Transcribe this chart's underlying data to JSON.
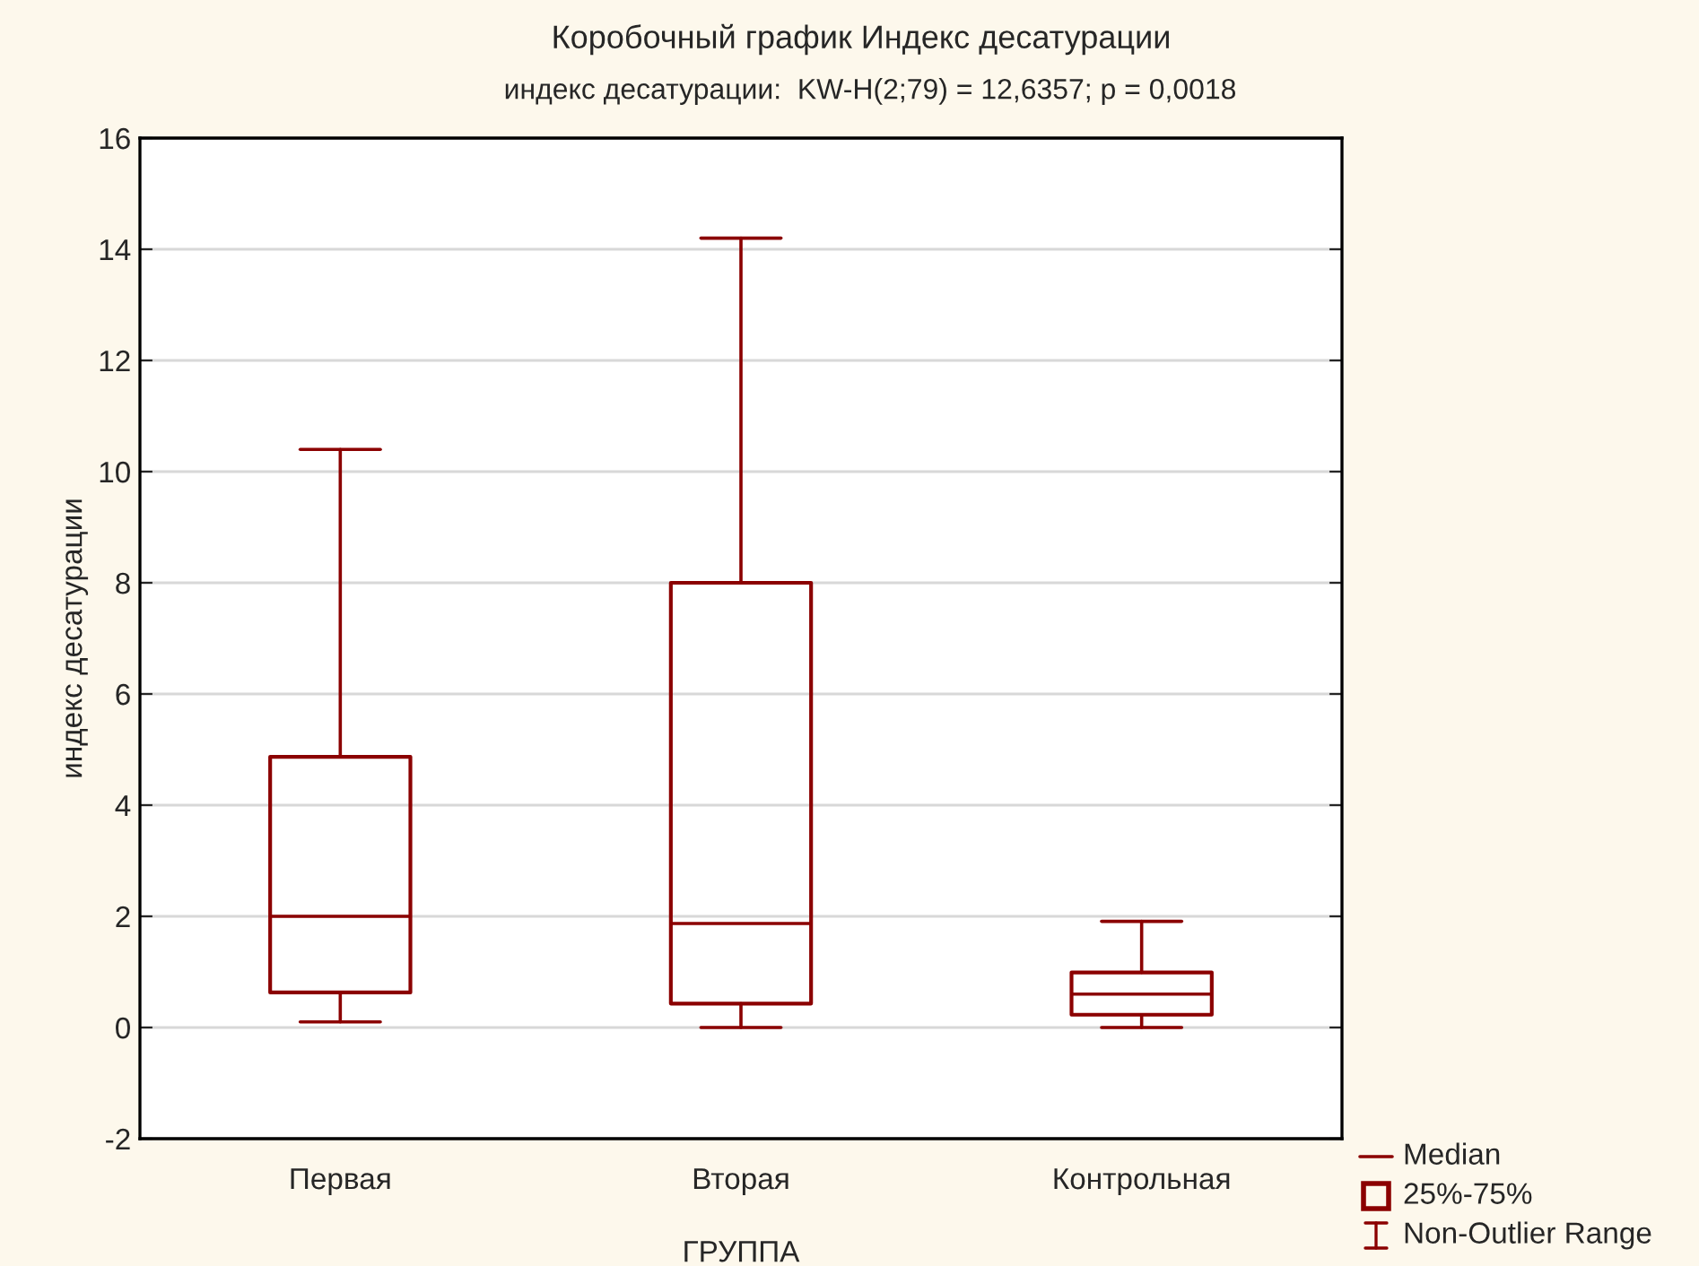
{
  "chart_data": {
    "type": "box",
    "title": "Коробочный график Индекс десатурации",
    "subtitle": "индекс десатурации:  KW-H(2;79) = 12,6357; p = 0,0018",
    "xlabel": "ГРУППА",
    "ylabel": "индекс десатурации",
    "categories": [
      "Первая",
      "Вторая",
      "Контрольная"
    ],
    "boxes": [
      {
        "low": 0.1,
        "q1": 0.63,
        "median": 2.0,
        "q3": 4.87,
        "high": 10.4
      },
      {
        "low": 0,
        "q1": 0.43,
        "median": 1.87,
        "q3": 8.0,
        "high": 14.2
      },
      {
        "low": 0,
        "q1": 0.23,
        "median": 0.6,
        "q3": 0.99,
        "high": 1.91
      }
    ],
    "color": "#8b0000",
    "ylim": [
      -2,
      16
    ],
    "yticks": [
      {
        "value": -2,
        "label": "-2"
      },
      0,
      2,
      4,
      6,
      8,
      10,
      12,
      14,
      16
    ],
    "grid": "y",
    "annotations": [
      "Median",
      "25%-75%",
      "Non-Outlier Range"
    ]
  }
}
